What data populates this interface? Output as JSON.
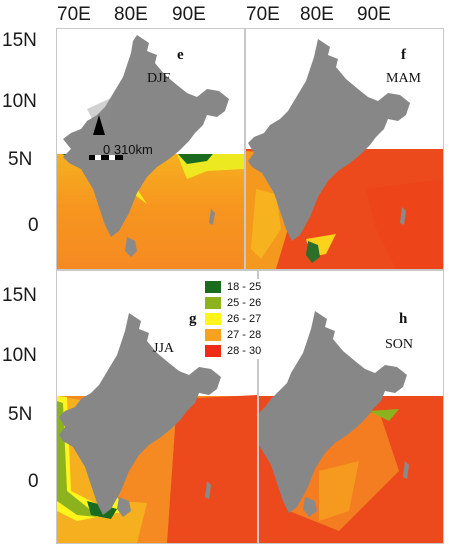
{
  "axes": {
    "longitude": [
      "70E",
      "80E",
      "90E"
    ],
    "latitude": [
      "15N",
      "10N",
      "5N",
      "0"
    ]
  },
  "panels": [
    {
      "letter": "e",
      "season": "DJF"
    },
    {
      "letter": "f",
      "season": "MAM"
    },
    {
      "letter": "g",
      "season": "JJA"
    },
    {
      "letter": "h",
      "season": "SON"
    }
  ],
  "scale_bar": {
    "label": "0 310km"
  },
  "legend": [
    {
      "label": "18 - 25",
      "color": "#1a6b1f"
    },
    {
      "label": "25 - 26",
      "color": "#8cb31e"
    },
    {
      "label": "26 - 27",
      "color": "#fff51c"
    },
    {
      "label": "27 - 28",
      "color": "#f7a21e"
    },
    {
      "label": "28 - 30",
      "color": "#ef2c18"
    }
  ],
  "colors": {
    "land": "#878787",
    "sea_dominant_winter": "#f58a22",
    "sea_dominant_other": "#ec4a1c"
  }
}
